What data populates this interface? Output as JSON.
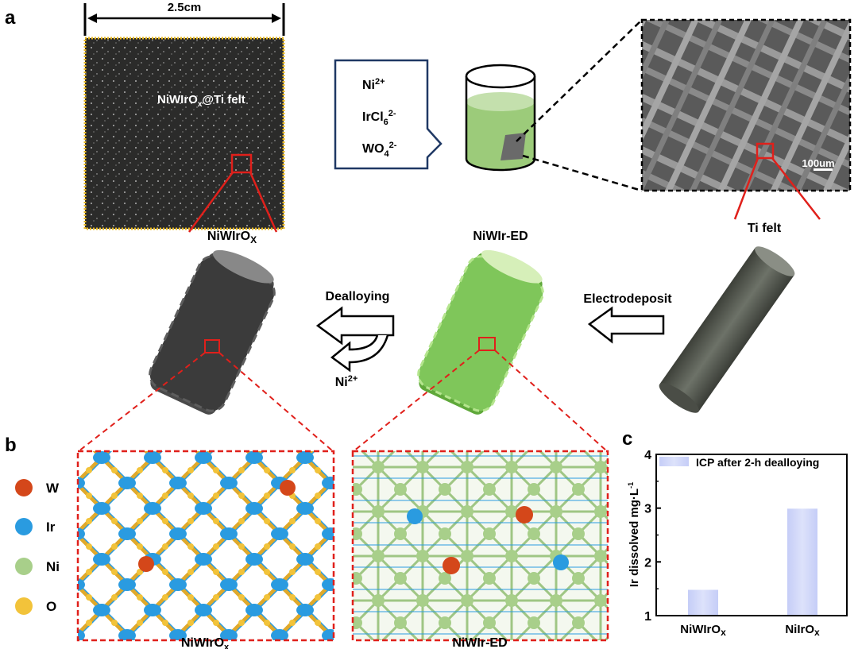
{
  "panels": {
    "a": "a",
    "b": "b",
    "c": "c"
  },
  "scale_label": "2.5cm",
  "photo": {
    "label_base": "NiWIrO",
    "label_sub": "x",
    "label_rest": "@Ti felt"
  },
  "labels": {
    "niwirox": {
      "base": "NiWIrO",
      "sub": "X"
    },
    "niwired": "NiWIr-ED",
    "ti_felt": "Ti felt",
    "b_left": {
      "base": "NiWIrO",
      "sub": "x"
    },
    "b_right": "NiWIr-ED"
  },
  "solution_ions": [
    {
      "base": "Ni",
      "sub": "",
      "sup": "2+"
    },
    {
      "base": "IrCl",
      "sub": "6",
      "sup": "2-"
    },
    {
      "base": "WO",
      "sub": "4",
      "sup": "2-"
    }
  ],
  "sem_scale": "100um",
  "process": {
    "dealloying": "Dealloying",
    "dealloy_product": {
      "base": "Ni",
      "sup": "2+"
    },
    "electrodeposit": "Electrodeposit"
  },
  "legend_atoms": [
    {
      "symbol": "W",
      "color": "#d4471a"
    },
    {
      "symbol": "Ir",
      "color": "#2a9be0"
    },
    {
      "symbol": "Ni",
      "color": "#a8cf8a"
    },
    {
      "symbol": "O",
      "color": "#f2c33a"
    }
  ],
  "colors": {
    "highlight_red": "#e0201b",
    "photo_border": "#e8b923",
    "callout": "#1f3864",
    "solution": "#9ccb7a",
    "bar": "#c5cdf7"
  },
  "chart_data": {
    "type": "bar",
    "categories": [
      {
        "base": "NiWIrO",
        "sub": "x"
      },
      {
        "base": "NiIrO",
        "sub": "x"
      }
    ],
    "values": [
      1.48,
      2.99
    ],
    "ylabel": "Ir dissolved mg·L",
    "ylabel_sup": "-1",
    "ylim": [
      1,
      4
    ],
    "yticks": [
      "1",
      "2",
      "3",
      "4"
    ],
    "legend": "ICP after 2-h dealloying",
    "legend_position": "top-left",
    "grid": false
  }
}
